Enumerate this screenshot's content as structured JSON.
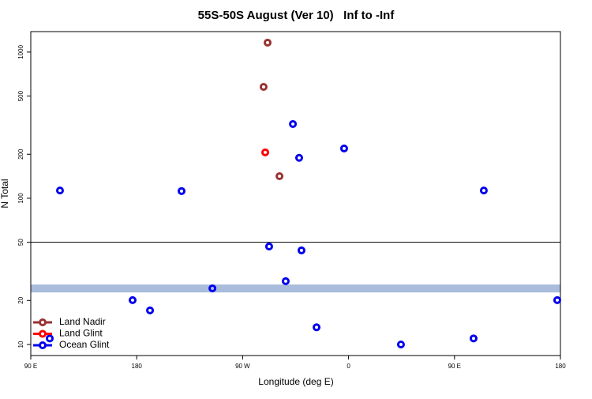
{
  "chart_data": {
    "type": "scatter",
    "title": "55S-50S August (Ver 10)   Inf to -Inf",
    "x_label": "Longitude (deg E)",
    "y_label": "N Total",
    "xlim": [
      90,
      540
    ],
    "ylim": [
      8.4,
      1380
    ],
    "log_y": true,
    "xticks": [
      {
        "value": 90,
        "label": "90 E"
      },
      180,
      {
        "value": 270,
        "label": "90 W"
      },
      {
        "value": 360,
        "label": "0"
      },
      {
        "value": 450,
        "label": "90 E"
      },
      {
        "value": 540,
        "label": "180"
      }
    ],
    "yticks": [
      10,
      20,
      50,
      100,
      200,
      500,
      1000
    ],
    "hline": 50,
    "band": [
      22.7,
      25.7
    ],
    "band_color": "#a9bcdc",
    "legend": "bottom-left",
    "series": [
      {
        "name": "Land Nadir",
        "color": "#993333",
        "x": [
          291.2,
          287.8,
          301.3
        ],
        "values": [
          1160,
          578,
          141.6
        ]
      },
      {
        "name": "Land Glint",
        "color": "#ff0000",
        "x": [
          289.2
        ],
        "values": [
          206
        ]
      },
      {
        "name": "Ocean Glint",
        "color": "#0000ee",
        "x": [
          114.8,
          218.1,
          312.7,
          318.0,
          356.2,
          474.9,
          292.5,
          320.0,
          306.6,
          244.3,
          176.5,
          191.3,
          106.1,
          332.8,
          404.5,
          466.2,
          537.3
        ],
        "values": [
          113,
          112,
          322,
          189,
          219,
          113,
          46.8,
          44,
          27.1,
          24.2,
          20.1,
          17.1,
          11.0,
          13.1,
          10,
          11.0,
          20.1
        ]
      }
    ]
  }
}
